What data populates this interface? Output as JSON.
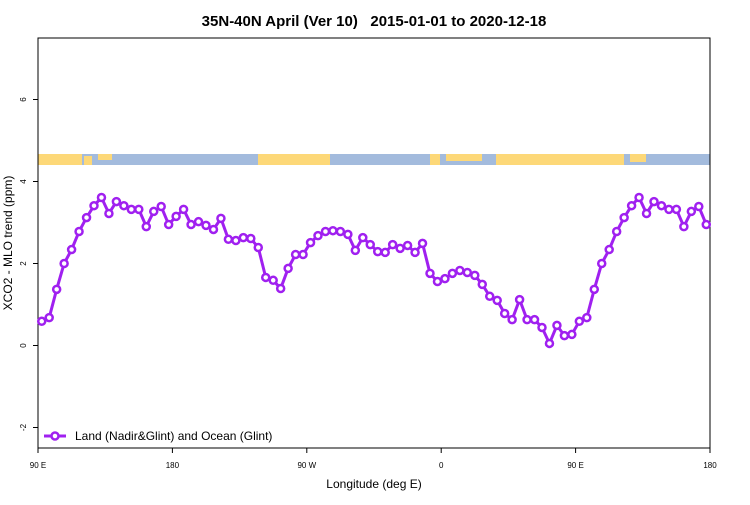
{
  "chart_data": {
    "type": "line",
    "title": "35N-40N April (Ver 10)   2015-01-01 to 2020-12-18",
    "xlabel": "Longitude (deg E)",
    "ylabel": "XCO2 - MLO trend (ppm)",
    "xlim": [
      90,
      540
    ],
    "ylim": [
      -2.5,
      7.5
    ],
    "xticks": [
      {
        "value": 90,
        "label": "90 E"
      },
      {
        "value": 180,
        "label": "180"
      },
      {
        "value": 270,
        "label": "90 W"
      },
      {
        "value": 360,
        "label": "0"
      },
      {
        "value": 450,
        "label": "90 E"
      },
      {
        "value": 540,
        "label": "180"
      }
    ],
    "yticks": [
      -2,
      0,
      2,
      4,
      6
    ],
    "legend": "bottom-left",
    "x": [
      92.5,
      97.5,
      102.5,
      107.5,
      112.5,
      117.5,
      122.5,
      127.5,
      132.5,
      137.5,
      142.5,
      147.5,
      152.5,
      157.5,
      162.5,
      167.5,
      172.5,
      177.5,
      182.5,
      187.5,
      192.5,
      197.5,
      202.5,
      207.5,
      212.5,
      217.5,
      222.5,
      227.5,
      232.5,
      237.5,
      242.5,
      247.5,
      252.5,
      257.5,
      262.5,
      267.5,
      272.5,
      277.5,
      282.5,
      287.5,
      292.5,
      297.5,
      302.5,
      307.5,
      312.5,
      317.5,
      322.5,
      327.5,
      332.5,
      337.5,
      342.5,
      347.5,
      352.5,
      357.5,
      362.5,
      367.5,
      372.5,
      377.5,
      382.5,
      387.5,
      392.5,
      397.5,
      402.5,
      407.5,
      412.5,
      417.5,
      422.5,
      427.5,
      432.5,
      437.5,
      442.5,
      447.5,
      452.5,
      457.5,
      462.5,
      467.5,
      472.5,
      477.5,
      482.5,
      487.5,
      492.5,
      497.5,
      502.5,
      507.5,
      512.5,
      517.5,
      522.5,
      527.5,
      532.5,
      537.5
    ],
    "series": [
      {
        "name": "Land (Nadir&Glint) and Ocean (Glint)",
        "color": "#a020f0",
        "values": [
          0.59,
          0.68,
          1.37,
          2.0,
          2.34,
          2.78,
          3.12,
          3.41,
          3.61,
          3.22,
          3.51,
          3.41,
          3.32,
          3.32,
          2.9,
          3.27,
          3.39,
          2.95,
          3.15,
          3.32,
          2.95,
          3.02,
          2.93,
          2.83,
          3.1,
          2.59,
          2.56,
          2.63,
          2.61,
          2.39,
          1.66,
          1.59,
          1.39,
          1.88,
          2.22,
          2.22,
          2.51,
          2.68,
          2.78,
          2.8,
          2.78,
          2.71,
          2.32,
          2.63,
          2.46,
          2.29,
          2.27,
          2.46,
          2.37,
          2.44,
          2.27,
          2.49,
          1.76,
          1.56,
          1.63,
          1.76,
          1.83,
          1.78,
          1.71,
          1.49,
          1.2,
          1.1,
          0.78,
          0.63,
          1.12,
          0.63,
          0.63,
          0.44,
          0.05,
          0.49,
          0.24,
          0.27,
          0.59,
          0.68,
          1.37,
          2.0,
          2.34,
          2.78,
          3.12,
          3.41,
          3.61,
          3.22,
          3.51,
          3.41,
          3.32,
          3.32,
          2.9,
          3.27,
          3.39,
          2.95
        ]
      }
    ]
  }
}
